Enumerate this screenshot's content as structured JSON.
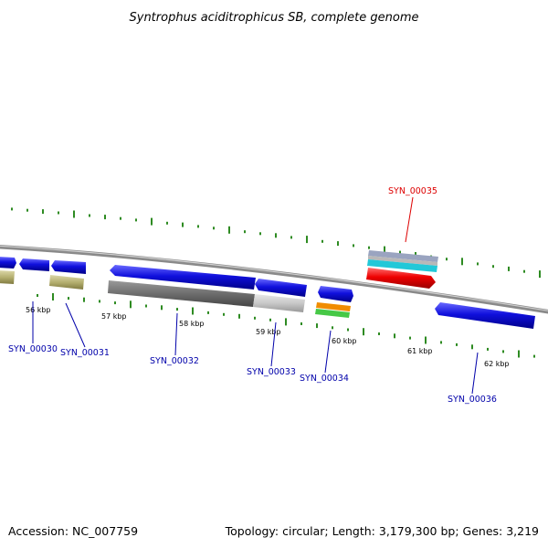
{
  "title": "Syntrophus aciditrophicus SB, complete genome",
  "accession": "Accession: NC_007759",
  "summary": "Topology: circular; Length: 3,179,300 bp; Genes: 3,219",
  "colors": {
    "backbone": "#8a8a8a",
    "gc_ticks": "#2e8b22",
    "gene_blue": "#1010dd",
    "label_blue": "#0000aa",
    "highlight": "#dd0000",
    "olive": "#b5b070",
    "gray_dark": "#6e6e6e",
    "gray_light": "#c8c8c8",
    "orange": "#f08c00",
    "green": "#46c846",
    "cyan": "#22c8d8",
    "steel": "#a0a8c0"
  },
  "scale_labels": [
    "56 kbp",
    "57 kbp",
    "58 kbp",
    "59 kbp",
    "60 kbp",
    "61 kbp",
    "62 kbp"
  ],
  "genes": [
    {
      "id": "SYN_00030",
      "label": "SYN_00030",
      "color": "label_blue"
    },
    {
      "id": "SYN_00031",
      "label": "SYN_00031",
      "color": "label_blue"
    },
    {
      "id": "SYN_00032",
      "label": "SYN_00032",
      "color": "label_blue"
    },
    {
      "id": "SYN_00033",
      "label": "SYN_00033",
      "color": "label_blue"
    },
    {
      "id": "SYN_00034",
      "label": "SYN_00034",
      "color": "label_blue"
    },
    {
      "id": "SYN_00035",
      "label": "SYN_00035",
      "color": "highlight"
    },
    {
      "id": "SYN_00036",
      "label": "SYN_00036",
      "color": "label_blue"
    }
  ]
}
